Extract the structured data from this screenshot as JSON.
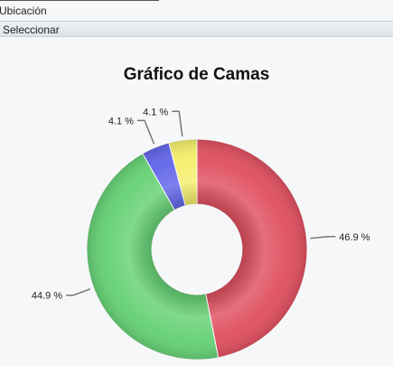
{
  "filter": {
    "location_label": "Ubicación",
    "select_label": "Seleccionar"
  },
  "chart_data": {
    "type": "pie",
    "donut": true,
    "title": "Gráfico de Camas",
    "slices": [
      {
        "value": 46.9,
        "label": "46.9 %",
        "color": "#e05060"
      },
      {
        "value": 44.9,
        "label": "44.9 %",
        "color": "#66d175"
      },
      {
        "value": 4.1,
        "label": "4.1 %",
        "color": "#6266ea"
      },
      {
        "value": 4.1,
        "label": "4.1 %",
        "color": "#f4ef6a"
      }
    ],
    "legend": "none"
  }
}
